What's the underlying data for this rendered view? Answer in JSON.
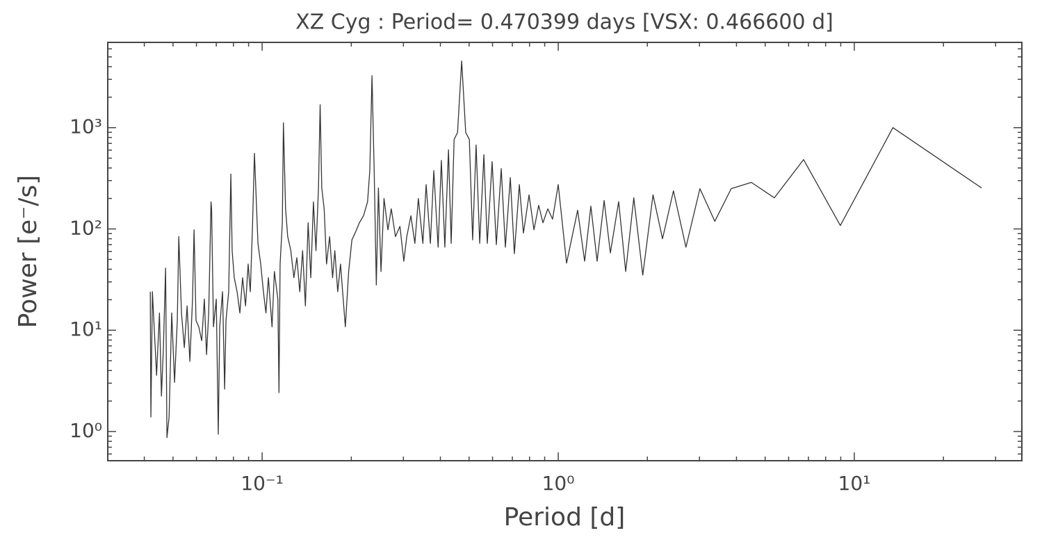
{
  "chart_data": {
    "type": "line",
    "title": "XZ Cyg : Period= 0.470399 days [VSX: 0.466600 d]",
    "xlabel": "Period [d]",
    "ylabel": "Power [e⁻/s]",
    "xscale": "log",
    "yscale": "log",
    "xlim": [
      0.0301,
      36.8
    ],
    "ylim": [
      0.515,
      6950
    ],
    "xticks": [
      {
        "value": 0.1,
        "label": "10⁻¹"
      },
      {
        "value": 1,
        "label": "10⁰"
      },
      {
        "value": 10,
        "label": "10¹"
      }
    ],
    "yticks": [
      {
        "value": 1,
        "label": "10⁰"
      },
      {
        "value": 10,
        "label": "10¹"
      },
      {
        "value": 100,
        "label": "10²"
      },
      {
        "value": 1000,
        "label": "10³"
      }
    ],
    "xminorticks": [
      0.04,
      0.05,
      0.06,
      0.07,
      0.08,
      0.09,
      0.2,
      0.3,
      0.4,
      0.5,
      0.6,
      0.7,
      0.8,
      0.9,
      2,
      3,
      4,
      5,
      6,
      7,
      8,
      9,
      20,
      30
    ],
    "yminorticks": [
      0.6,
      0.7,
      0.8,
      0.9,
      2,
      3,
      4,
      5,
      6,
      7,
      8,
      9,
      20,
      30,
      40,
      50,
      60,
      70,
      80,
      90,
      200,
      300,
      400,
      500,
      600,
      700,
      800,
      900,
      2000,
      3000,
      4000,
      5000,
      6000
    ],
    "x": [
      0.0419,
      0.0421,
      0.0426,
      0.0433,
      0.044,
      0.045,
      0.0457,
      0.0464,
      0.0472,
      0.0477,
      0.0485,
      0.0495,
      0.0506,
      0.0517,
      0.0523,
      0.0534,
      0.0546,
      0.0558,
      0.057,
      0.0582,
      0.0589,
      0.0598,
      0.0611,
      0.0625,
      0.0638,
      0.0649,
      0.066,
      0.0672,
      0.0675,
      0.0685,
      0.07,
      0.0711,
      0.0719,
      0.0735,
      0.0747,
      0.0755,
      0.0771,
      0.0784,
      0.0792,
      0.0805,
      0.0823,
      0.0841,
      0.0859,
      0.0879,
      0.0897,
      0.0912,
      0.0927,
      0.0942,
      0.0968,
      0.0989,
      0.101,
      0.103,
      0.105,
      0.108,
      0.11,
      0.113,
      0.114,
      0.115,
      0.117,
      0.118,
      0.12,
      0.122,
      0.125,
      0.128,
      0.131,
      0.134,
      0.137,
      0.14,
      0.143,
      0.146,
      0.149,
      0.152,
      0.155,
      0.157,
      0.159,
      0.162,
      0.165,
      0.169,
      0.173,
      0.176,
      0.18,
      0.184,
      0.187,
      0.191,
      0.196,
      0.201,
      0.206,
      0.213,
      0.22,
      0.227,
      0.231,
      0.235,
      0.239,
      0.243,
      0.247,
      0.252,
      0.258,
      0.266,
      0.273,
      0.282,
      0.292,
      0.301,
      0.308,
      0.318,
      0.328,
      0.337,
      0.349,
      0.358,
      0.37,
      0.38,
      0.393,
      0.403,
      0.414,
      0.426,
      0.435,
      0.445,
      0.457,
      0.472,
      0.487,
      0.501,
      0.514,
      0.528,
      0.543,
      0.561,
      0.576,
      0.598,
      0.618,
      0.642,
      0.663,
      0.689,
      0.711,
      0.739,
      0.763,
      0.797,
      0.828,
      0.859,
      0.888,
      0.922,
      0.957,
      1.0,
      1.067,
      1.163,
      1.228,
      1.289,
      1.353,
      1.429,
      1.5,
      1.6,
      1.69,
      1.8,
      1.93,
      2.09,
      2.25,
      2.45,
      2.7,
      3.01,
      3.38,
      3.84,
      4.49,
      5.37,
      6.74,
      8.97,
      13.5,
      26.9
    ],
    "series": [
      {
        "color": "#333333",
        "values": [
          24,
          1.39,
          24,
          9.25,
          3.59,
          14.8,
          2.24,
          6.74,
          41,
          0.87,
          1.39,
          14.8,
          3.06,
          12.5,
          84,
          14.8,
          6.74,
          17.4,
          4.92,
          20.3,
          98,
          12.5,
          10.8,
          7.89,
          20.3,
          5.75,
          14.8,
          185,
          158,
          10.8,
          20.3,
          0.94,
          10.8,
          24,
          2.62,
          12.5,
          24,
          348,
          61,
          33,
          24,
          14.8,
          33,
          17.4,
          45,
          24,
          98,
          558,
          72,
          45,
          24,
          14.8,
          33,
          10.8,
          38,
          20.3,
          2.42,
          45,
          115,
          1117,
          158,
          84,
          61,
          33,
          52,
          24,
          61,
          17.4,
          115,
          33,
          185,
          61,
          254,
          1683,
          254,
          158,
          45,
          84,
          33,
          61,
          24,
          45,
          24,
          10.8,
          38,
          78,
          91,
          115,
          135,
          185,
          376,
          3260,
          376,
          28,
          254,
          38,
          200,
          98,
          158,
          84,
          106,
          48,
          84,
          135,
          72,
          200,
          72,
          274,
          72,
          376,
          66,
          476,
          66,
          604,
          72,
          765,
          896,
          4550,
          896,
          765,
          78,
          674,
          72,
          541,
          72,
          462,
          70,
          394,
          66,
          321,
          57,
          274,
          91,
          217,
          98,
          171,
          115,
          158,
          125,
          274,
          46,
          153,
          48,
          168,
          48,
          191,
          58,
          186,
          38,
          203,
          35,
          217,
          80,
          238,
          66,
          250,
          119,
          250,
          288,
          203,
          484,
          108,
          1000,
          254
        ]
      }
    ]
  }
}
